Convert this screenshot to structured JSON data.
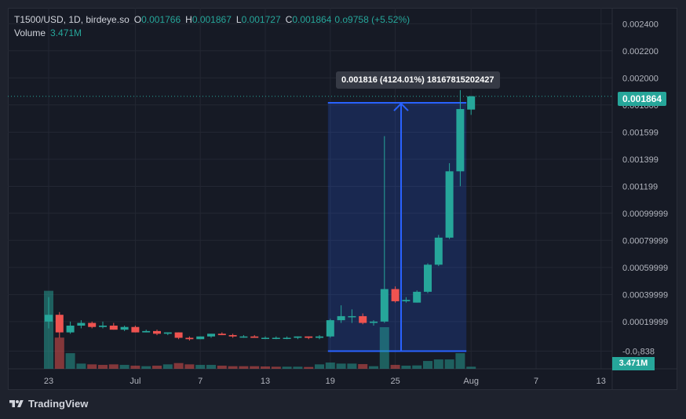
{
  "header": {
    "symbol": "T1500/USD, 1D, birdeye.so",
    "open_label": "O",
    "open": "0.001766",
    "high_label": "H",
    "high": "0.001867",
    "low_label": "L",
    "low": "0.001727",
    "close_label": "C",
    "close": "0.001864",
    "change": "0.o9758 (+5.52%)",
    "volume_label": "Volume",
    "volume_value": "3.471M"
  },
  "measure_tooltip": "0.001816 (4124.01%) 18167815202427",
  "current_price_tag": "0.001864",
  "current_volume_tag": "3.471M",
  "branding": "TradingView",
  "colors": {
    "up": "#26a69a",
    "down": "#ef5350",
    "measure": "#2962ff",
    "background": "#161a25"
  },
  "chart_data": {
    "type": "candlestick",
    "y_tick_labels": [
      "0.002400",
      "0.002200",
      "0.002000",
      "0.001800",
      "0.001599",
      "0.001399",
      "0.001199",
      "0.00099999",
      "0.00079999",
      "0.00059999",
      "0.00039999",
      "0.00019999",
      "-0.0₁838"
    ],
    "y_tick_values": [
      0.0024,
      0.0022,
      0.002,
      0.0018,
      0.001599,
      0.001399,
      0.001199,
      0.00099999,
      0.00079999,
      0.00059999,
      0.00039999,
      0.00019999,
      -1.838e-05
    ],
    "ylim": [
      -7e-05,
      0.00251
    ],
    "x_tick_labels": [
      "23",
      "Jul",
      "7",
      "13",
      "19",
      "25",
      "Aug",
      "7",
      "13"
    ],
    "x_tick_index": [
      0,
      8,
      14,
      20,
      26,
      32,
      39,
      45,
      51
    ],
    "x_count": 57,
    "grid": true,
    "candles": [
      {
        "o": 0.0002,
        "h": 0.00038,
        "l": 0.00015,
        "c": 0.00025
      },
      {
        "o": 0.00025,
        "h": 0.00027,
        "l": 8e-05,
        "c": 0.00012
      },
      {
        "o": 0.00012,
        "h": 0.0002,
        "l": 0.00011,
        "c": 0.00017
      },
      {
        "o": 0.00017,
        "h": 0.00021,
        "l": 0.00015,
        "c": 0.00019
      },
      {
        "o": 0.00019,
        "h": 0.0002,
        "l": 0.00015,
        "c": 0.00016
      },
      {
        "o": 0.00016,
        "h": 0.0002,
        "l": 0.00015,
        "c": 0.00017
      },
      {
        "o": 0.00017,
        "h": 0.00019,
        "l": 0.00014,
        "c": 0.00014
      },
      {
        "o": 0.00014,
        "h": 0.00017,
        "l": 0.00013,
        "c": 0.00016
      },
      {
        "o": 0.00016,
        "h": 0.00017,
        "l": 0.00012,
        "c": 0.00012
      },
      {
        "o": 0.00012,
        "h": 0.00014,
        "l": 0.00012,
        "c": 0.00013
      },
      {
        "o": 0.00013,
        "h": 0.00014,
        "l": 0.0001,
        "c": 0.00011
      },
      {
        "o": 0.00011,
        "h": 0.00012,
        "l": 0.0001,
        "c": 0.00012
      },
      {
        "o": 0.00012,
        "h": 0.00012,
        "l": 7e-05,
        "c": 8e-05
      },
      {
        "o": 8e-05,
        "h": 9e-05,
        "l": 6e-05,
        "c": 7e-05
      },
      {
        "o": 7e-05,
        "h": 9e-05,
        "l": 7e-05,
        "c": 9e-05
      },
      {
        "o": 9e-05,
        "h": 0.00011,
        "l": 8e-05,
        "c": 0.00011
      },
      {
        "o": 0.00011,
        "h": 0.00012,
        "l": 0.0001,
        "c": 0.0001
      },
      {
        "o": 0.0001,
        "h": 0.00011,
        "l": 8e-05,
        "c": 9e-05
      },
      {
        "o": 9e-05,
        "h": 0.0001,
        "l": 8e-05,
        "c": 9e-05
      },
      {
        "o": 9e-05,
        "h": 0.0001,
        "l": 8e-05,
        "c": 8e-05
      },
      {
        "o": 8e-05,
        "h": 9e-05,
        "l": 7e-05,
        "c": 8e-05
      },
      {
        "o": 8e-05,
        "h": 9e-05,
        "l": 7e-05,
        "c": 8e-05
      },
      {
        "o": 8e-05,
        "h": 9e-05,
        "l": 7e-05,
        "c": 8e-05
      },
      {
        "o": 8e-05,
        "h": 9e-05,
        "l": 7e-05,
        "c": 9e-05
      },
      {
        "o": 9e-05,
        "h": 9e-05,
        "l": 7e-05,
        "c": 8e-05
      },
      {
        "o": 8e-05,
        "h": 0.0001,
        "l": 7e-05,
        "c": 9e-05
      },
      {
        "o": 9e-05,
        "h": 0.00022,
        "l": 8e-05,
        "c": 0.00021
      },
      {
        "o": 0.00021,
        "h": 0.00032,
        "l": 0.00019,
        "c": 0.00024
      },
      {
        "o": 0.00024,
        "h": 0.00029,
        "l": 0.00019,
        "c": 0.00024
      },
      {
        "o": 0.00024,
        "h": 0.00026,
        "l": 0.00018,
        "c": 0.00019
      },
      {
        "o": 0.00019,
        "h": 0.00021,
        "l": 0.00017,
        "c": 0.0002
      },
      {
        "o": 0.0002,
        "h": 0.00157,
        "l": 0.00019,
        "c": 0.00044
      },
      {
        "o": 0.00044,
        "h": 0.00046,
        "l": 0.00034,
        "c": 0.00035
      },
      {
        "o": 0.00035,
        "h": 0.00038,
        "l": 0.00034,
        "c": 0.00036
      },
      {
        "o": 0.00034,
        "h": 0.00043,
        "l": 0.00034,
        "c": 0.00042
      },
      {
        "o": 0.00042,
        "h": 0.00063,
        "l": 0.00041,
        "c": 0.00062
      },
      {
        "o": 0.00062,
        "h": 0.00084,
        "l": 0.00061,
        "c": 0.00082
      },
      {
        "o": 0.00082,
        "h": 0.00137,
        "l": 0.00081,
        "c": 0.00131
      },
      {
        "o": 0.00131,
        "h": 0.00191,
        "l": 0.0012,
        "c": 0.00177
      },
      {
        "o": 0.001766,
        "h": 0.001867,
        "l": 0.001727,
        "c": 0.001864
      }
    ],
    "volumes": [
      {
        "v": 3.0,
        "up": true
      },
      {
        "v": 1.2,
        "up": false
      },
      {
        "v": 0.6,
        "up": true
      },
      {
        "v": 0.2,
        "up": true
      },
      {
        "v": 0.17,
        "up": false
      },
      {
        "v": 0.15,
        "up": false
      },
      {
        "v": 0.17,
        "up": false
      },
      {
        "v": 0.15,
        "up": true
      },
      {
        "v": 0.12,
        "up": false
      },
      {
        "v": 0.1,
        "up": true
      },
      {
        "v": 0.12,
        "up": false
      },
      {
        "v": 0.17,
        "up": true
      },
      {
        "v": 0.22,
        "up": false
      },
      {
        "v": 0.17,
        "up": false
      },
      {
        "v": 0.15,
        "up": true
      },
      {
        "v": 0.15,
        "up": true
      },
      {
        "v": 0.12,
        "up": false
      },
      {
        "v": 0.1,
        "up": false
      },
      {
        "v": 0.1,
        "up": false
      },
      {
        "v": 0.1,
        "up": false
      },
      {
        "v": 0.09,
        "up": false
      },
      {
        "v": 0.08,
        "up": false
      },
      {
        "v": 0.08,
        "up": true
      },
      {
        "v": 0.08,
        "up": true
      },
      {
        "v": 0.07,
        "up": false
      },
      {
        "v": 0.17,
        "up": true
      },
      {
        "v": 0.24,
        "up": true
      },
      {
        "v": 0.2,
        "up": true
      },
      {
        "v": 0.2,
        "up": true
      },
      {
        "v": 0.18,
        "up": false
      },
      {
        "v": 0.1,
        "up": true
      },
      {
        "v": 1.6,
        "up": true
      },
      {
        "v": 0.15,
        "up": false
      },
      {
        "v": 0.12,
        "up": true
      },
      {
        "v": 0.13,
        "up": true
      },
      {
        "v": 0.3,
        "up": true
      },
      {
        "v": 0.36,
        "up": true
      },
      {
        "v": 0.36,
        "up": true
      },
      {
        "v": 0.6,
        "up": true
      },
      {
        "v": 0.08,
        "up": true
      }
    ],
    "volume_max": 3.471,
    "measure": {
      "start_index": 26,
      "end_index": 39,
      "from": -1.838e-05,
      "to": 0.001816
    }
  }
}
